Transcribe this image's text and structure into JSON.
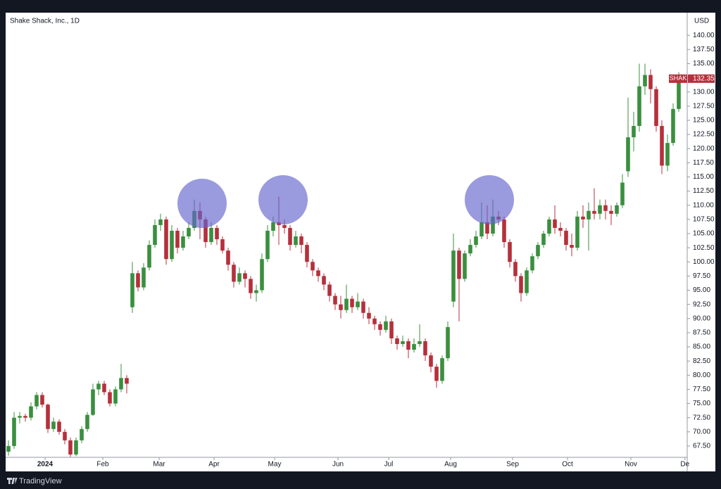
{
  "chart_data": {
    "type": "candlestick",
    "title": "Shake Shack, Inc., 1D",
    "currency": "USD",
    "symbol": "SHAK",
    "brand": "TradingView",
    "up_color": "#3a8f3e",
    "down_color": "#b5303c",
    "grid": false,
    "ylim": [
      65.5,
      144
    ],
    "yticks": [
      {
        "value": 67.5,
        "label": "67.50"
      },
      {
        "value": 70,
        "label": "70.00"
      },
      {
        "value": 72.5,
        "label": "72.50"
      },
      {
        "value": 75,
        "label": "75.00"
      },
      {
        "value": 77.5,
        "label": "77.50"
      },
      {
        "value": 80,
        "label": "80.00"
      },
      {
        "value": 82.5,
        "label": "82.50"
      },
      {
        "value": 85,
        "label": "85.00"
      },
      {
        "value": 87.5,
        "label": "87.50"
      },
      {
        "value": 90,
        "label": "90.00"
      },
      {
        "value": 92.5,
        "label": "92.50"
      },
      {
        "value": 95,
        "label": "95.00"
      },
      {
        "value": 97.5,
        "label": "97.50"
      },
      {
        "value": 100,
        "label": "100.00"
      },
      {
        "value": 102.5,
        "label": "102.50"
      },
      {
        "value": 105,
        "label": "105.00"
      },
      {
        "value": 107.5,
        "label": "107.50"
      },
      {
        "value": 110,
        "label": "110.00"
      },
      {
        "value": 112.5,
        "label": "112.50"
      },
      {
        "value": 115,
        "label": "115.00"
      },
      {
        "value": 117.5,
        "label": "117.50"
      },
      {
        "value": 120,
        "label": "120.00"
      },
      {
        "value": 122.5,
        "label": "122.50"
      },
      {
        "value": 125,
        "label": "125.00"
      },
      {
        "value": 127.5,
        "label": "127.50"
      },
      {
        "value": 130,
        "label": "130.00"
      },
      {
        "value": 132.5,
        "label": "132.50"
      },
      {
        "value": 135,
        "label": "135.00"
      },
      {
        "value": 137.5,
        "label": "137.50"
      },
      {
        "value": 140,
        "label": "140.00"
      }
    ],
    "xlim": [
      0,
      121
    ],
    "xticks": [
      {
        "value": 7,
        "label": "2024"
      },
      {
        "value": 17.25,
        "label": "Feb"
      },
      {
        "value": 27.25,
        "label": "Mar"
      },
      {
        "value": 37,
        "label": "Apr"
      },
      {
        "value": 47.75,
        "label": "May"
      },
      {
        "value": 59,
        "label": "Jun"
      },
      {
        "value": 68,
        "label": "Jul"
      },
      {
        "value": 79,
        "label": "Aug"
      },
      {
        "value": 90,
        "label": "Sep"
      },
      {
        "value": 99.75,
        "label": "Oct"
      },
      {
        "value": 111,
        "label": "Nov"
      },
      {
        "value": 120.6,
        "label": "De"
      }
    ],
    "candles": [
      [
        66.5,
        68.5,
        65.8,
        67.5
      ],
      [
        67.5,
        73.5,
        67,
        72.5
      ],
      [
        72.5,
        73.5,
        71.5,
        72.8
      ],
      [
        72.8,
        73.2,
        71.8,
        72.5
      ],
      [
        72.5,
        75.2,
        72,
        74.5
      ],
      [
        74.5,
        77,
        74,
        76.5
      ],
      [
        76.5,
        77,
        74.3,
        74.8
      ],
      [
        74.8,
        75,
        69.8,
        70.5
      ],
      [
        70.5,
        72.5,
        70,
        71.8
      ],
      [
        71.8,
        72.2,
        69.5,
        70
      ],
      [
        70,
        70.5,
        67.8,
        68.5
      ],
      [
        68.5,
        69,
        65.6,
        66
      ],
      [
        66,
        69,
        65.7,
        68.5
      ],
      [
        68.5,
        71,
        68,
        70.5
      ],
      [
        70.5,
        73.5,
        70,
        73
      ],
      [
        73,
        78.5,
        72.8,
        77.5
      ],
      [
        77.5,
        79,
        76.5,
        78.5
      ],
      [
        78.5,
        79,
        76.5,
        77
      ],
      [
        77,
        77.5,
        74.5,
        75
      ],
      [
        75,
        78,
        74.5,
        77.5
      ],
      [
        77.5,
        82,
        77,
        79.5
      ],
      [
        79.5,
        80,
        76.8,
        78.5
      ],
      [
        92,
        100,
        91,
        98
      ],
      [
        98,
        98.5,
        94.8,
        95.5
      ],
      [
        95.5,
        99.8,
        95,
        99
      ],
      [
        99,
        103.8,
        98.5,
        103
      ],
      [
        103,
        107.5,
        102.5,
        106.5
      ],
      [
        106.5,
        108.5,
        105.5,
        107.5
      ],
      [
        107.5,
        108,
        99.5,
        100.5
      ],
      [
        100.5,
        106.5,
        100,
        105.5
      ],
      [
        105.5,
        106,
        101.5,
        102.5
      ],
      [
        102.5,
        105.5,
        102,
        104.5
      ],
      [
        104.5,
        107,
        104,
        106
      ],
      [
        106,
        111,
        105.5,
        109
      ],
      [
        109,
        110.5,
        104,
        107.5
      ],
      [
        107.5,
        108,
        102.5,
        103.5
      ],
      [
        103.5,
        107,
        103,
        106
      ],
      [
        106,
        106.5,
        103,
        104
      ],
      [
        104,
        104.5,
        101.5,
        102
      ],
      [
        102,
        102.5,
        98.5,
        99.5
      ],
      [
        99.5,
        100,
        95.5,
        96.5
      ],
      [
        96.5,
        99,
        96,
        98
      ],
      [
        98,
        98.5,
        95.5,
        97
      ],
      [
        97,
        97.5,
        93.5,
        94.5
      ],
      [
        94.5,
        96,
        93,
        95
      ],
      [
        95,
        101.5,
        94.5,
        100.5
      ],
      [
        100.5,
        106.5,
        100,
        105.5
      ],
      [
        105.5,
        108,
        104.5,
        107
      ],
      [
        107,
        111.5,
        103,
        106.5
      ],
      [
        106.5,
        107.5,
        105,
        106
      ],
      [
        106,
        106.5,
        102,
        103
      ],
      [
        103,
        105.5,
        102.5,
        104.5
      ],
      [
        104.5,
        105,
        101.5,
        103
      ],
      [
        103,
        103.5,
        99,
        100
      ],
      [
        100,
        100.5,
        97.5,
        98.5
      ],
      [
        98.5,
        99,
        96.5,
        97.5
      ],
      [
        97.5,
        98,
        95,
        96
      ],
      [
        96,
        96.5,
        93,
        94
      ],
      [
        94,
        94.5,
        91.5,
        92.5
      ],
      [
        92.5,
        94,
        90,
        91.5
      ],
      [
        91.5,
        96,
        91,
        93.5
      ],
      [
        93.5,
        94,
        91,
        92
      ],
      [
        92,
        94.5,
        91.5,
        93
      ],
      [
        93,
        93.5,
        90,
        91
      ],
      [
        91,
        92,
        89,
        90
      ],
      [
        90,
        90.5,
        88,
        89
      ],
      [
        89,
        89.5,
        87,
        88
      ],
      [
        88,
        90.5,
        87.5,
        89.5
      ],
      [
        89.5,
        90,
        85.5,
        86.5
      ],
      [
        86.5,
        87,
        84.5,
        85.5
      ],
      [
        85.5,
        87,
        85,
        86
      ],
      [
        86,
        86.5,
        83,
        84.5
      ],
      [
        84.5,
        86.5,
        84,
        85.5
      ],
      [
        85.5,
        89,
        85,
        86
      ],
      [
        86,
        86.5,
        82.5,
        83.5
      ],
      [
        83.5,
        84,
        80.5,
        81.5
      ],
      [
        81.5,
        82,
        77.8,
        79
      ],
      [
        79,
        83.5,
        78.5,
        83
      ],
      [
        83,
        89.5,
        82.5,
        88.5
      ],
      [
        93,
        105,
        92,
        102
      ],
      [
        102,
        102.5,
        89.5,
        97
      ],
      [
        97,
        102,
        96.5,
        101.5
      ],
      [
        101.5,
        104,
        101,
        103
      ],
      [
        103,
        105.5,
        102.5,
        104.5
      ],
      [
        104.5,
        110.5,
        104,
        107
      ],
      [
        107,
        110,
        104,
        105
      ],
      [
        105,
        111,
        104.5,
        108
      ],
      [
        108,
        109,
        106.5,
        107.5
      ],
      [
        107.5,
        108,
        102.5,
        103.5
      ],
      [
        103.5,
        104,
        99,
        100
      ],
      [
        100,
        100.5,
        96.5,
        97.5
      ],
      [
        97.5,
        98,
        93,
        94.5
      ],
      [
        94.5,
        99,
        94,
        98.5
      ],
      [
        98.5,
        101.5,
        98,
        101
      ],
      [
        101,
        103.5,
        100.5,
        103
      ],
      [
        103,
        105.5,
        102.5,
        105
      ],
      [
        105,
        108,
        104.5,
        107.5
      ],
      [
        107.5,
        110,
        105,
        106
      ],
      [
        106,
        107,
        104.5,
        105.5
      ],
      [
        105.5,
        106,
        102,
        103
      ],
      [
        103,
        105,
        101,
        102.5
      ],
      [
        102.5,
        109,
        102,
        108
      ],
      [
        108,
        110,
        106,
        107.5
      ],
      [
        107.5,
        110.5,
        102,
        109
      ],
      [
        109,
        113,
        107.5,
        108.5
      ],
      [
        108.5,
        111,
        107.5,
        110
      ],
      [
        110,
        111,
        107.5,
        109
      ],
      [
        109,
        110,
        106.5,
        108.5
      ],
      [
        108.5,
        110.5,
        108,
        110
      ],
      [
        110,
        115.5,
        109.5,
        114
      ],
      [
        116,
        129,
        115,
        122
      ],
      [
        122,
        126.5,
        119.5,
        124
      ],
      [
        124,
        135,
        123,
        131
      ],
      [
        131,
        135,
        129.5,
        133
      ],
      [
        133,
        134,
        128,
        130.5
      ],
      [
        130.5,
        131,
        123,
        124
      ],
      [
        124,
        125,
        115.5,
        117
      ],
      [
        117,
        122.5,
        116,
        121
      ],
      [
        121,
        128,
        120.5,
        127
      ],
      [
        127,
        133.5,
        126.5,
        132.35
      ]
    ]
  }
}
